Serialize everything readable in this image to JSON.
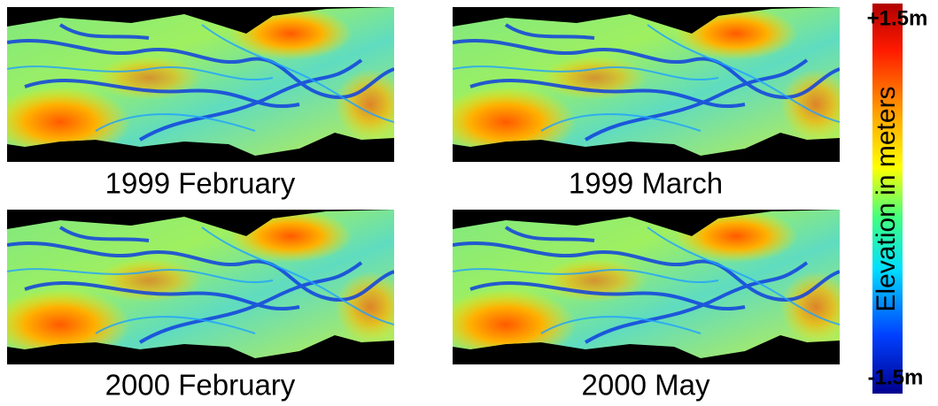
{
  "panels": [
    {
      "caption": "1999 February"
    },
    {
      "caption": "1999 March"
    },
    {
      "caption": "2000 February"
    },
    {
      "caption": "2000 May"
    }
  ],
  "colorbar": {
    "title": "Elevation in meters",
    "max_label": "+1.5m",
    "min_label": "-1.5m"
  }
}
